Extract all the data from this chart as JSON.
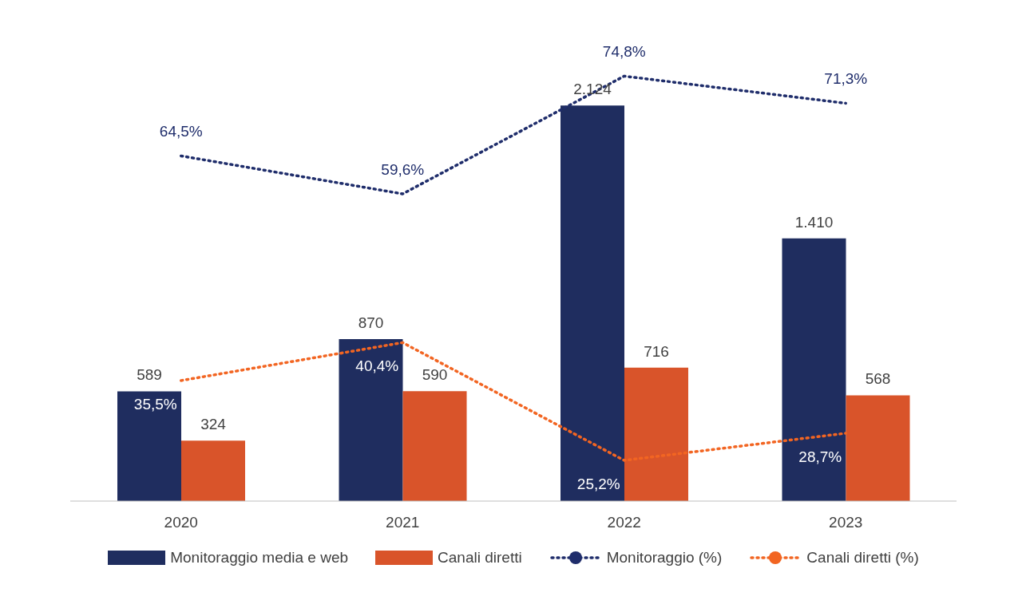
{
  "chart_data": {
    "type": "bar",
    "categories": [
      "2020",
      "2021",
      "2022",
      "2023"
    ],
    "legend": "bottom",
    "grid": false,
    "series": [
      {
        "name": "Monitoraggio media e web",
        "color": "#1f2d5f",
        "values": [
          589,
          870,
          2124,
          1410
        ],
        "value_labels": [
          "589",
          "870",
          "2.124",
          "1.410"
        ]
      },
      {
        "name": "Canali diretti",
        "color": "#d9542a",
        "values": [
          324,
          590,
          716,
          568
        ],
        "value_labels": [
          "324",
          "590",
          "716",
          "568"
        ]
      },
      {
        "name": "Monitoraggio (%)",
        "type": "line",
        "axis": "y2",
        "color": "#1f2d6b",
        "line_style": "dotted",
        "values": [
          64.5,
          59.6,
          74.8,
          71.3
        ],
        "value_labels": [
          "64,5%",
          "59,6%",
          "74,8%",
          "71,3%"
        ]
      },
      {
        "name": "Canali diretti (%)",
        "type": "line",
        "axis": "y2",
        "color": "#f26522",
        "line_style": "dotted",
        "values": [
          35.5,
          40.4,
          25.2,
          28.7
        ],
        "value_labels": [
          "35,5%",
          "40,4%",
          "25,2%",
          "28,7%"
        ]
      }
    ]
  }
}
